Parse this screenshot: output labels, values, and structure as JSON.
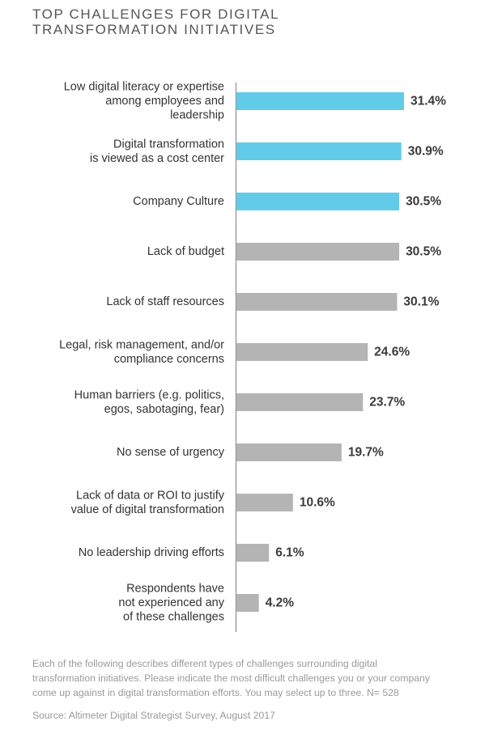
{
  "title_lines": [
    "TOP CHALLENGES FOR DIGITAL",
    "TRANSFORMATION INITIATIVES"
  ],
  "chart_data": {
    "type": "bar",
    "orientation": "horizontal",
    "title": "TOP CHALLENGES FOR DIGITAL TRANSFORMATION INITIATIVES",
    "xlabel": "",
    "ylabel": "",
    "unit": "%",
    "xlim": [
      0,
      31.4
    ],
    "grid": false,
    "categories": [
      [
        "Low digital literacy or expertise",
        "among employees and",
        "leadership"
      ],
      [
        "Digital transformation",
        "is viewed as a cost center"
      ],
      [
        "Company Culture"
      ],
      [
        "Lack of budget"
      ],
      [
        "Lack of staff resources"
      ],
      [
        "Legal, risk management, and/or",
        "compliance concerns"
      ],
      [
        "Human barriers (e.g. politics,",
        "egos, sabotaging, fear)"
      ],
      [
        "No sense of urgency"
      ],
      [
        "Lack of data or ROI to justify",
        "value of digital transformation"
      ],
      [
        "No leadership driving efforts"
      ],
      [
        "Respondents have",
        "not experienced any",
        "of these challenges"
      ]
    ],
    "values": [
      31.4,
      30.9,
      30.5,
      30.5,
      30.1,
      24.6,
      23.7,
      19.7,
      10.6,
      6.1,
      4.2
    ],
    "value_labels": [
      "31.4%",
      "30.9%",
      "30.5%",
      "30.5%",
      "30.1%",
      "24.6%",
      "23.7%",
      "19.7%",
      "10.6%",
      "6.1%",
      "4.2%"
    ],
    "highlighted": [
      true,
      true,
      true,
      false,
      false,
      false,
      false,
      false,
      false,
      false,
      false
    ],
    "colors": {
      "highlight": "#62cbea",
      "default": "#b4b4b4",
      "axis": "#9a9a9a"
    }
  },
  "footnote": "Each of the following describes different types of challenges surrounding digital transformation initiatives. Please indicate the most difficult challenges you or your company come up against in digital transformation efforts. You may select up to three. N= 528",
  "source": "Source: Altimeter Digital Strategist Survey, August 2017"
}
